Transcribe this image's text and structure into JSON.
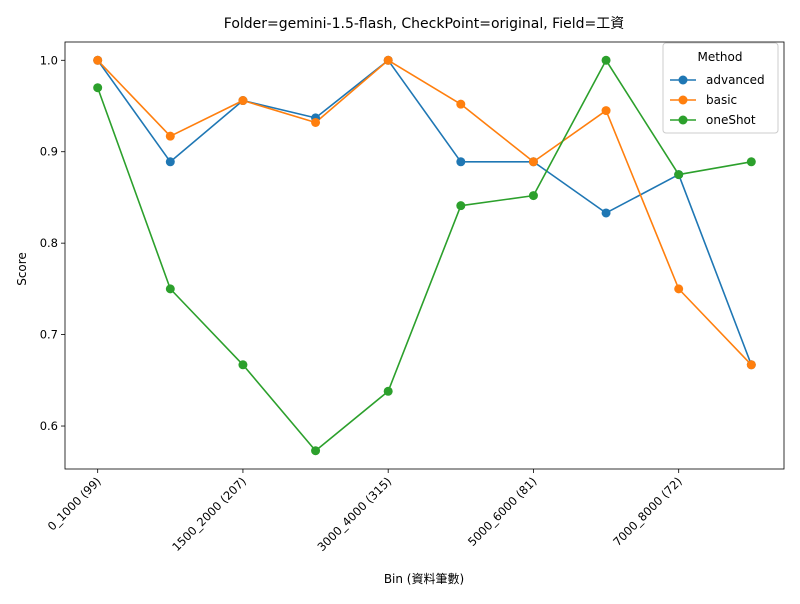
{
  "chart_data": {
    "type": "line",
    "title": "Folder=gemini-1.5-flash, CheckPoint=original, Field=工資",
    "xlabel": "Bin (資料筆數)",
    "ylabel": "Score",
    "ylim": [
      0.553,
      1.02
    ],
    "yticks": [
      0.6,
      0.7,
      0.8,
      0.9,
      1.0
    ],
    "ytick_labels": [
      "0.6",
      "0.7",
      "0.8",
      "0.9",
      "1.0"
    ],
    "x": [
      0,
      1,
      2,
      3,
      4,
      5,
      6,
      7,
      8,
      9
    ],
    "xticks": [
      0,
      2,
      4,
      6,
      8
    ],
    "xtick_labels": [
      "0_1000 (99)",
      "1500_2000 (207)",
      "3000_4000 (315)",
      "5000_6000 (81)",
      "7000_8000 (72)"
    ],
    "grid": false,
    "legend": {
      "title": "Method",
      "placement": "top-right"
    },
    "series": [
      {
        "name": "advanced",
        "color": "#1f77b4",
        "values": [
          1.0,
          0.889,
          0.956,
          0.937,
          1.0,
          0.889,
          0.889,
          0.833,
          0.875,
          0.667
        ]
      },
      {
        "name": "basic",
        "color": "#ff7f0e",
        "values": [
          1.0,
          0.917,
          0.956,
          0.932,
          1.0,
          0.952,
          0.889,
          0.945,
          0.75,
          0.667
        ]
      },
      {
        "name": "oneShot",
        "color": "#2ca02c",
        "values": [
          0.97,
          0.75,
          0.667,
          0.573,
          0.638,
          0.841,
          0.852,
          1.0,
          0.875,
          0.889
        ]
      }
    ]
  }
}
